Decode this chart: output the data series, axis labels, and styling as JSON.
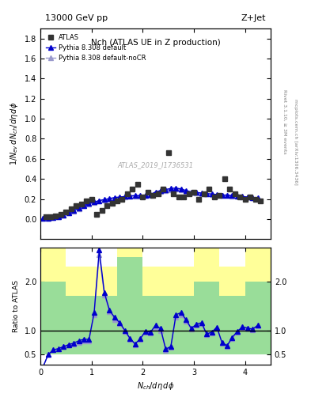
{
  "title_left": "13000 GeV pp",
  "title_right": "Z+Jet",
  "plot_title": "Nch (ATLAS UE in Z production)",
  "ylabel_main": "1/N_ev dN_ch/dη dφ",
  "ylabel_ratio": "Ratio to ATLAS",
  "xlabel": "N_{ch}/dη dφ",
  "watermark": "ATLAS_2019_I1736531",
  "right_label": "Rivet 3.1.10, ≥ 3M events",
  "right_label2": "mcplots.cern.ch [arXiv:1306.3436]",
  "atlas_x": [
    0.1,
    0.2,
    0.3,
    0.4,
    0.5,
    0.6,
    0.7,
    0.8,
    0.9,
    1.0,
    1.1,
    1.2,
    1.3,
    1.4,
    1.5,
    1.6,
    1.7,
    1.8,
    1.9,
    2.0,
    2.1,
    2.2,
    2.3,
    2.4,
    2.5,
    2.6,
    2.7,
    2.8,
    2.9,
    3.0,
    3.1,
    3.2,
    3.3,
    3.4,
    3.5,
    3.6,
    3.7,
    3.8,
    3.9,
    4.0,
    4.1,
    4.2,
    4.3
  ],
  "atlas_y": [
    0.02,
    0.02,
    0.03,
    0.05,
    0.07,
    0.1,
    0.13,
    0.15,
    0.18,
    0.2,
    0.05,
    0.09,
    0.13,
    0.16,
    0.18,
    0.2,
    0.25,
    0.3,
    0.35,
    0.22,
    0.27,
    0.24,
    0.25,
    0.3,
    0.66,
    0.25,
    0.22,
    0.22,
    0.25,
    0.27,
    0.2,
    0.25,
    0.3,
    0.22,
    0.24,
    0.4,
    0.3,
    0.25,
    0.22,
    0.2,
    0.22,
    0.2,
    0.18
  ],
  "pythia_default_x": [
    0.05,
    0.15,
    0.25,
    0.35,
    0.45,
    0.55,
    0.65,
    0.75,
    0.85,
    0.95,
    1.05,
    1.15,
    1.25,
    1.35,
    1.45,
    1.55,
    1.65,
    1.75,
    1.85,
    1.95,
    2.05,
    2.15,
    2.25,
    2.35,
    2.45,
    2.55,
    2.65,
    2.75,
    2.85,
    2.95,
    3.05,
    3.15,
    3.25,
    3.35,
    3.45,
    3.55,
    3.65,
    3.75,
    3.85,
    3.95,
    4.05,
    4.15,
    4.25
  ],
  "pythia_default_y": [
    0.005,
    0.01,
    0.015,
    0.025,
    0.04,
    0.06,
    0.085,
    0.11,
    0.135,
    0.155,
    0.17,
    0.185,
    0.195,
    0.205,
    0.215,
    0.22,
    0.225,
    0.23,
    0.235,
    0.235,
    0.24,
    0.245,
    0.27,
    0.285,
    0.295,
    0.305,
    0.31,
    0.3,
    0.285,
    0.27,
    0.265,
    0.26,
    0.255,
    0.25,
    0.245,
    0.24,
    0.24,
    0.235,
    0.23,
    0.225,
    0.22,
    0.215,
    0.21
  ],
  "pythia_nocr_x": [
    0.05,
    0.15,
    0.25,
    0.35,
    0.45,
    0.55,
    0.65,
    0.75,
    0.85,
    0.95,
    1.05,
    1.15,
    1.25,
    1.35,
    1.45,
    1.55,
    1.65,
    1.75,
    1.85,
    1.95,
    2.05,
    2.15,
    2.25,
    2.35,
    2.45,
    2.55,
    2.65,
    2.75,
    2.85,
    2.95,
    3.05,
    3.15,
    3.25,
    3.35,
    3.45,
    3.55,
    3.65,
    3.75,
    3.85,
    3.95,
    4.05,
    4.15,
    4.25
  ],
  "pythia_nocr_y": [
    0.005,
    0.01,
    0.015,
    0.025,
    0.04,
    0.06,
    0.082,
    0.105,
    0.13,
    0.15,
    0.165,
    0.178,
    0.19,
    0.2,
    0.208,
    0.215,
    0.22,
    0.225,
    0.23,
    0.232,
    0.235,
    0.24,
    0.26,
    0.275,
    0.285,
    0.295,
    0.3,
    0.29,
    0.278,
    0.265,
    0.26,
    0.255,
    0.25,
    0.245,
    0.24,
    0.235,
    0.235,
    0.23,
    0.225,
    0.222,
    0.218,
    0.212,
    0.208
  ],
  "ylim_main": [
    -0.2,
    1.9
  ],
  "ylim_ratio": [
    0.3,
    2.7
  ],
  "xlim": [
    0.0,
    4.5
  ],
  "color_atlas": "#333333",
  "color_pythia_default": "#0000cc",
  "color_pythia_nocr": "#9999cc",
  "green_band_x": [
    0.0,
    0.5,
    0.5,
    1.0,
    1.0,
    1.5,
    1.5,
    2.0,
    2.0,
    2.5,
    2.5,
    3.0,
    3.0,
    3.5,
    3.5,
    4.0,
    4.0,
    4.5,
    4.5
  ],
  "green_band_y_low": [
    0.5,
    0.5,
    0.5,
    0.5,
    0.5,
    0.5,
    0.5,
    0.5,
    0.5,
    0.5,
    0.5,
    0.5,
    0.5,
    0.5,
    0.5,
    0.5,
    0.5,
    0.5,
    0.5
  ],
  "green_band_y_high": [
    2.0,
    2.0,
    1.7,
    1.7,
    1.7,
    1.7,
    2.5,
    2.5,
    1.7,
    1.7,
    1.7,
    1.7,
    2.0,
    2.0,
    1.7,
    1.7,
    2.0,
    2.0,
    2.0
  ],
  "yellow_band_x": [
    0.0,
    0.5,
    0.5,
    1.0,
    1.0,
    1.5,
    1.5,
    2.0,
    2.0,
    2.5,
    2.5,
    3.0,
    3.0,
    3.5,
    3.5,
    4.0,
    4.0,
    4.5,
    4.5
  ],
  "yellow_band_y_low": [
    0.5,
    0.5,
    0.5,
    0.5,
    0.5,
    0.5,
    0.5,
    0.5,
    0.5,
    0.5,
    0.5,
    0.5,
    0.5,
    0.5,
    0.5,
    0.5,
    0.5,
    0.5,
    0.5
  ],
  "yellow_band_y_high": [
    2.7,
    2.7,
    2.3,
    2.3,
    2.3,
    2.3,
    2.7,
    2.7,
    2.3,
    2.3,
    2.3,
    2.3,
    2.7,
    2.7,
    2.3,
    2.3,
    2.7,
    2.7,
    2.7
  ],
  "yticks_main": [
    0.0,
    0.2,
    0.4,
    0.6,
    0.8,
    1.0,
    1.2,
    1.4,
    1.6,
    1.8
  ],
  "yticks_ratio": [
    0.5,
    1.0,
    2.0
  ],
  "xticks": [
    0,
    1,
    2,
    3,
    4
  ]
}
